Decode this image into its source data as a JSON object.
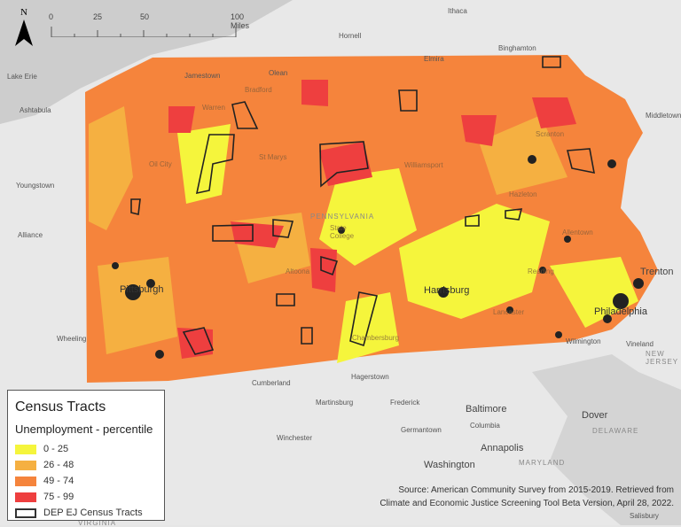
{
  "north_arrow": {
    "label": "N"
  },
  "scale_bar": {
    "ticks": [
      "0",
      "25",
      "50",
      "100 Miles"
    ]
  },
  "places": {
    "ithaca": "Ithaca",
    "hornell": "Hornell",
    "binghamton": "Binghamton",
    "elmira": "Elmira",
    "jamestown": "Jamestown",
    "olean": "Olean",
    "ashtabula": "Ashtabula",
    "middletown": "Middletown",
    "bradford": "Bradford",
    "warren": "Warren",
    "scranton": "Scranton",
    "st_marys": "St Marys",
    "oil_city": "Oil City",
    "williamsport": "Williamsport",
    "youngstown": "Youngstown",
    "hazleton": "Hazleton",
    "alliance": "Alliance",
    "pennsylvania": "PENNSYLVANIA",
    "state_college": "State College",
    "allentown": "Allentown",
    "altoona": "Altoona",
    "reading": "Reading",
    "trenton": "Trenton",
    "pittsburgh": "Pittsburgh",
    "harrisburg": "Harrisburg",
    "lancaster": "Lancaster",
    "philadelphia": "Philadelphia",
    "wheeling": "Wheeling",
    "chambersburg": "Chambersburg",
    "wilmington": "Wilmington",
    "vineland": "Vineland",
    "new_jersey": "NEW JERSEY",
    "cumberland": "Cumberland",
    "hagerstown": "Hagerstown",
    "martinsburg": "Martinsburg",
    "frederick": "Frederick",
    "baltimore": "Baltimore",
    "dover": "Dover",
    "germantown": "Germantown",
    "columbia": "Columbia",
    "winchester": "Winchester",
    "annapolis": "Annapolis",
    "delaware": "DELAWARE",
    "washington": "Washington",
    "maryland": "MARYLAND",
    "salisbury": "Salisbury",
    "virginia": "VIRGINIA",
    "lake_erie": "Lake Erie"
  },
  "legend": {
    "title": "Census Tracts",
    "subtitle": "Unemployment - percentile",
    "items": [
      {
        "label": "0 - 25",
        "color": "#f5f53c"
      },
      {
        "label": "26 - 48",
        "color": "#f5b041"
      },
      {
        "label": "49 - 74",
        "color": "#f5843c"
      },
      {
        "label": "75 - 99",
        "color": "#ee3f3f"
      },
      {
        "label": "DEP EJ Census Tracts",
        "color": "#ffffff"
      }
    ]
  },
  "source": {
    "line1": "Source: American Community Survey from 2015-2019. Retrieved from",
    "line2": "Climate and Economic Justice Screening Tool Beta Version, April 28, 2022."
  }
}
